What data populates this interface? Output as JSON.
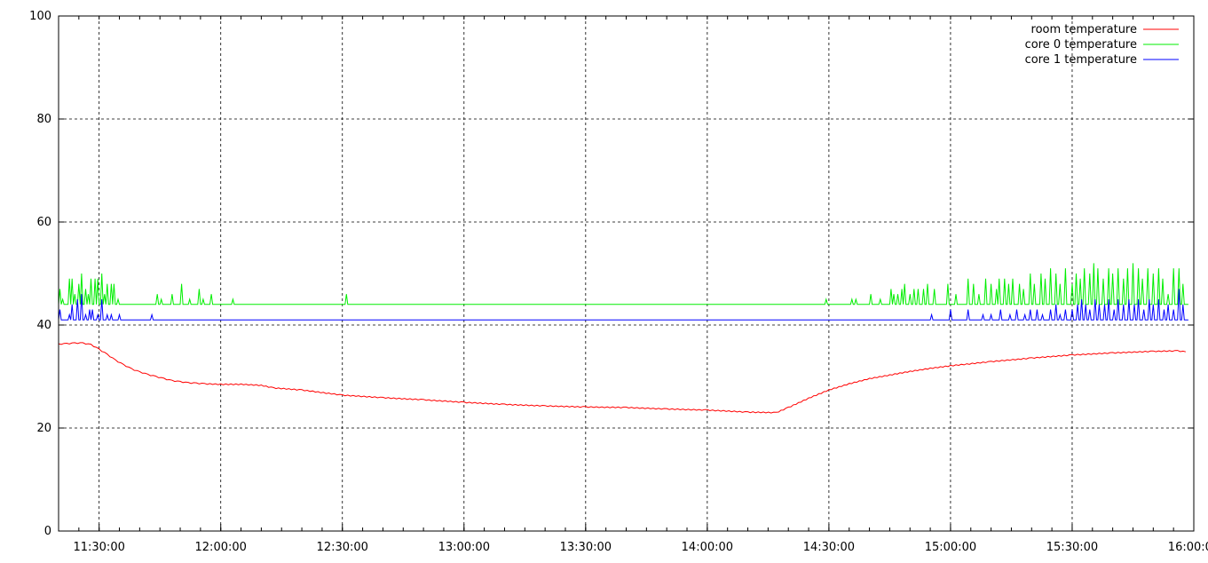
{
  "chart_data": {
    "type": "line",
    "title": "",
    "xlabel": "",
    "ylabel": "",
    "x_range": [
      "11:20:00",
      "16:00:00"
    ],
    "ylim": [
      0,
      100
    ],
    "grid": true,
    "grid_style": "dashed-black",
    "legend_position": "top-right",
    "y_ticks": [
      "0",
      "20",
      "40",
      "60",
      "80",
      "100"
    ],
    "x_ticks": [
      "11:30:00",
      "12:00:00",
      "12:30:00",
      "13:00:00",
      "13:30:00",
      "14:00:00",
      "14:30:00",
      "15:00:00",
      "15:30:00",
      "16:00:00"
    ],
    "series": [
      {
        "name": "room temperature",
        "color": "#ff0000",
        "points": [
          [
            "11:20:00",
            36.3
          ],
          [
            "11:22:00",
            36.4
          ],
          [
            "11:24:00",
            36.5
          ],
          [
            "11:26:00",
            36.5
          ],
          [
            "11:28:00",
            36.2
          ],
          [
            "11:30:00",
            35.3
          ],
          [
            "11:32:00",
            34.3
          ],
          [
            "11:34:00",
            33.2
          ],
          [
            "11:36:00",
            32.3
          ],
          [
            "11:38:00",
            31.5
          ],
          [
            "11:40:00",
            30.9
          ],
          [
            "11:42:00",
            30.4
          ],
          [
            "11:44:00",
            30.0
          ],
          [
            "11:46:00",
            29.6
          ],
          [
            "11:48:00",
            29.2
          ],
          [
            "11:50:00",
            29.0
          ],
          [
            "11:52:00",
            28.8
          ],
          [
            "11:54:00",
            28.7
          ],
          [
            "11:56:00",
            28.6
          ],
          [
            "12:00:00",
            28.5
          ],
          [
            "12:05:00",
            28.5
          ],
          [
            "12:10:00",
            28.3
          ],
          [
            "12:13:00",
            27.8
          ],
          [
            "12:20:00",
            27.4
          ],
          [
            "12:30:00",
            26.4
          ],
          [
            "12:40:00",
            25.9
          ],
          [
            "12:50:00",
            25.5
          ],
          [
            "13:00:00",
            25.0
          ],
          [
            "13:10:00",
            24.6
          ],
          [
            "13:20:00",
            24.3
          ],
          [
            "13:30:00",
            24.1
          ],
          [
            "13:40:00",
            24.0
          ],
          [
            "13:50:00",
            23.7
          ],
          [
            "14:00:00",
            23.5
          ],
          [
            "14:10:00",
            23.1
          ],
          [
            "14:17:00",
            23.0
          ],
          [
            "14:20:00",
            24.0
          ],
          [
            "14:25:00",
            25.8
          ],
          [
            "14:30:00",
            27.4
          ],
          [
            "14:35:00",
            28.6
          ],
          [
            "14:40:00",
            29.6
          ],
          [
            "14:45:00",
            30.3
          ],
          [
            "14:50:00",
            31.0
          ],
          [
            "14:55:00",
            31.6
          ],
          [
            "15:00:00",
            32.1
          ],
          [
            "15:10:00",
            32.9
          ],
          [
            "15:20:00",
            33.6
          ],
          [
            "15:30:00",
            34.2
          ],
          [
            "15:40:00",
            34.6
          ],
          [
            "15:50:00",
            34.9
          ],
          [
            "15:56:00",
            35.0
          ],
          [
            "15:58:00",
            34.8
          ]
        ]
      },
      {
        "name": "core 0 temperature",
        "color": "#00ee00",
        "baseline": 44,
        "spikes": [
          [
            "11:20:20",
            47
          ],
          [
            "11:21:00",
            45
          ],
          [
            "11:22:40",
            49
          ],
          [
            "11:23:10",
            49
          ],
          [
            "11:24:00",
            46
          ],
          [
            "11:25:00",
            48
          ],
          [
            "11:25:40",
            50
          ],
          [
            "11:26:30",
            47
          ],
          [
            "11:27:10",
            46
          ],
          [
            "11:28:00",
            49
          ],
          [
            "11:28:50",
            49
          ],
          [
            "11:29:40",
            49
          ],
          [
            "11:30:40",
            50
          ],
          [
            "11:31:20",
            46
          ],
          [
            "11:31:50",
            48
          ],
          [
            "11:32:50",
            48
          ],
          [
            "11:33:40",
            48
          ],
          [
            "11:34:30",
            45
          ],
          [
            "11:44:10",
            46
          ],
          [
            "11:45:20",
            45
          ],
          [
            "11:47:50",
            46
          ],
          [
            "11:50:20",
            48
          ],
          [
            "11:52:20",
            45
          ],
          [
            "11:54:40",
            47
          ],
          [
            "11:55:40",
            45
          ],
          [
            "11:57:30",
            46
          ],
          [
            "12:02:50",
            45
          ],
          [
            "12:30:50",
            46
          ],
          [
            "14:29:10",
            45
          ],
          [
            "14:35:40",
            45
          ],
          [
            "14:36:40",
            45
          ],
          [
            "14:40:20",
            46
          ],
          [
            "14:42:30",
            45
          ],
          [
            "14:45:10",
            47
          ],
          [
            "14:46:00",
            46
          ],
          [
            "14:47:00",
            46
          ],
          [
            "14:47:50",
            47
          ],
          [
            "14:48:40",
            48
          ],
          [
            "14:50:00",
            46
          ],
          [
            "14:51:00",
            47
          ],
          [
            "14:51:50",
            47
          ],
          [
            "14:53:20",
            47
          ],
          [
            "14:54:20",
            48
          ],
          [
            "14:55:50",
            47
          ],
          [
            "14:59:10",
            48
          ],
          [
            "15:01:20",
            46
          ],
          [
            "15:04:20",
            49
          ],
          [
            "15:05:30",
            48
          ],
          [
            "15:07:00",
            46
          ],
          [
            "15:08:40",
            49
          ],
          [
            "15:10:00",
            48
          ],
          [
            "15:11:10",
            47
          ],
          [
            "15:12:00",
            49
          ],
          [
            "15:13:10",
            49
          ],
          [
            "15:14:10",
            48
          ],
          [
            "15:15:10",
            49
          ],
          [
            "15:16:50",
            48
          ],
          [
            "15:18:00",
            47
          ],
          [
            "15:19:40",
            50
          ],
          [
            "15:20:40",
            48
          ],
          [
            "15:22:10",
            50
          ],
          [
            "15:23:20",
            49
          ],
          [
            "15:24:30",
            51
          ],
          [
            "15:25:50",
            50
          ],
          [
            "15:27:00",
            48
          ],
          [
            "15:28:20",
            51
          ],
          [
            "15:30:00",
            48
          ],
          [
            "15:31:00",
            50
          ],
          [
            "15:32:00",
            49
          ],
          [
            "15:33:00",
            51
          ],
          [
            "15:34:20",
            50
          ],
          [
            "15:35:10",
            52
          ],
          [
            "15:36:20",
            51
          ],
          [
            "15:37:30",
            49
          ],
          [
            "15:38:50",
            51
          ],
          [
            "15:40:00",
            50
          ],
          [
            "15:41:10",
            51
          ],
          [
            "15:42:30",
            49
          ],
          [
            "15:43:40",
            51
          ],
          [
            "15:45:00",
            52
          ],
          [
            "15:46:10",
            51
          ],
          [
            "15:47:20",
            49
          ],
          [
            "15:48:40",
            51
          ],
          [
            "15:49:50",
            50
          ],
          [
            "15:51:10",
            51
          ],
          [
            "15:52:20",
            49
          ],
          [
            "15:53:30",
            46
          ],
          [
            "15:55:00",
            51
          ],
          [
            "15:56:10",
            51
          ],
          [
            "15:57:10",
            48
          ]
        ]
      },
      {
        "name": "core 1 temperature",
        "color": "#0000ff",
        "baseline": 41,
        "spikes": [
          [
            "11:20:20",
            43
          ],
          [
            "11:22:40",
            42
          ],
          [
            "11:23:10",
            44
          ],
          [
            "11:24:30",
            45
          ],
          [
            "11:25:40",
            46
          ],
          [
            "11:26:30",
            42
          ],
          [
            "11:27:40",
            43
          ],
          [
            "11:28:20",
            43
          ],
          [
            "11:29:40",
            42
          ],
          [
            "11:30:40",
            45
          ],
          [
            "11:31:50",
            42
          ],
          [
            "11:33:00",
            42
          ],
          [
            "11:35:00",
            42
          ],
          [
            "11:43:00",
            42
          ],
          [
            "14:55:10",
            42
          ],
          [
            "15:00:00",
            43
          ],
          [
            "15:04:20",
            43
          ],
          [
            "15:08:00",
            42
          ],
          [
            "15:10:00",
            42
          ],
          [
            "15:12:10",
            43
          ],
          [
            "15:14:30",
            42
          ],
          [
            "15:16:20",
            43
          ],
          [
            "15:18:10",
            42
          ],
          [
            "15:19:40",
            43
          ],
          [
            "15:21:20",
            43
          ],
          [
            "15:22:40",
            42
          ],
          [
            "15:24:30",
            43
          ],
          [
            "15:25:50",
            44
          ],
          [
            "15:27:00",
            42
          ],
          [
            "15:28:20",
            43
          ],
          [
            "15:30:00",
            43
          ],
          [
            "15:31:10",
            44
          ],
          [
            "15:32:10",
            45
          ],
          [
            "15:33:20",
            44
          ],
          [
            "15:34:20",
            43
          ],
          [
            "15:35:30",
            45
          ],
          [
            "15:36:30",
            44
          ],
          [
            "15:37:50",
            44
          ],
          [
            "15:39:00",
            45
          ],
          [
            "15:40:10",
            43
          ],
          [
            "15:41:20",
            45
          ],
          [
            "15:42:40",
            44
          ],
          [
            "15:43:50",
            45
          ],
          [
            "15:45:10",
            44
          ],
          [
            "15:46:20",
            45
          ],
          [
            "15:47:30",
            43
          ],
          [
            "15:48:50",
            45
          ],
          [
            "15:50:00",
            44
          ],
          [
            "15:51:10",
            45
          ],
          [
            "15:52:30",
            43
          ],
          [
            "15:53:40",
            44
          ],
          [
            "15:54:50",
            43
          ],
          [
            "15:56:10",
            47
          ],
          [
            "15:57:20",
            44
          ]
        ]
      }
    ]
  }
}
